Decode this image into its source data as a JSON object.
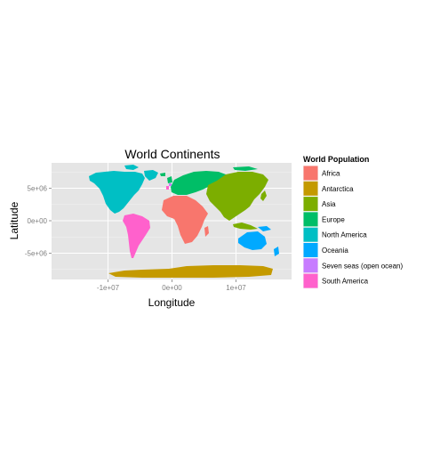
{
  "title": "World Continents",
  "x_axis": {
    "label": "Longitude",
    "ticks": [
      {
        "value": -10000000,
        "label": "-1e+07"
      },
      {
        "value": 0,
        "label": "0e+00"
      },
      {
        "value": 10000000,
        "label": "1e+07"
      }
    ]
  },
  "y_axis": {
    "label": "Latitude",
    "ticks": [
      {
        "value": 5000000,
        "label": "5e+06"
      },
      {
        "value": 0,
        "label": "0e+00"
      },
      {
        "value": -5000000,
        "label": "-5e+06"
      }
    ]
  },
  "legend": {
    "title": "World Population",
    "position": "right",
    "items": [
      {
        "label": "Africa",
        "color": "#F8766D"
      },
      {
        "label": "Antarctica",
        "color": "#C49A00"
      },
      {
        "label": "Asia",
        "color": "#7CAE00"
      },
      {
        "label": "Europe",
        "color": "#00BE67"
      },
      {
        "label": "North America",
        "color": "#00BFC4"
      },
      {
        "label": "Oceania",
        "color": "#00A9FF"
      },
      {
        "label": "Seven seas (open ocean)",
        "color": "#C77CFF"
      },
      {
        "label": "South America",
        "color": "#FF61CC"
      }
    ]
  },
  "panel_background": "#E5E5E5",
  "gridline_color": "#FFFFFF"
}
